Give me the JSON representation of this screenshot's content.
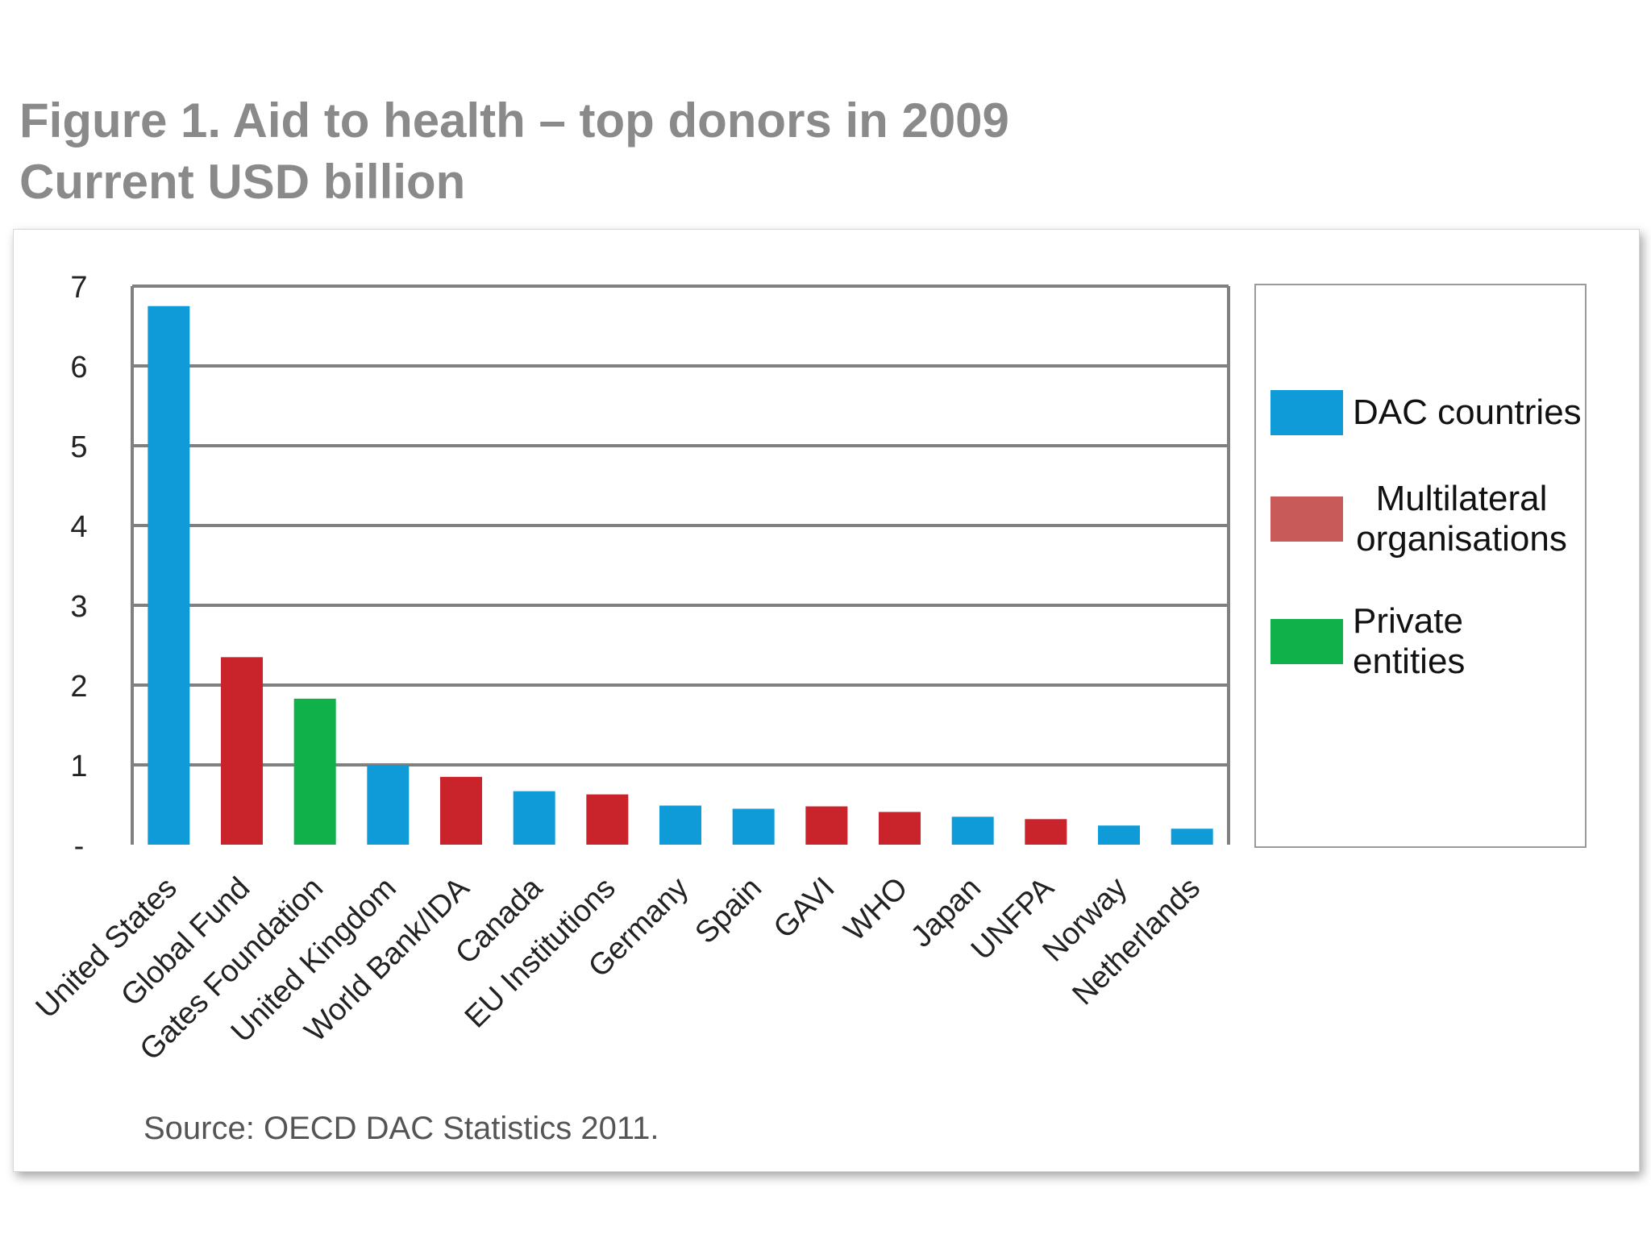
{
  "title": {
    "line1": "Figure 1. Aid to health – top donors in 2009",
    "line2": "Current USD billion"
  },
  "source": "Source:  OECD DAC Statistics 2011.",
  "colors": {
    "dac": "#0f9bd7",
    "multilateral": "#c9242b",
    "private": "#10b04a",
    "legend_multilateral_swatch": "#c95a5a"
  },
  "legend": [
    {
      "label": "DAC countries",
      "group": "dac"
    },
    {
      "label": "Multilateral organisations",
      "group": "multilateral"
    },
    {
      "label": "Private entities",
      "group": "private"
    }
  ],
  "chart_data": {
    "type": "bar",
    "title": "Aid to health – top donors in 2009",
    "ylabel": "Current USD billion",
    "xlabel": "",
    "ylim": [
      0,
      7
    ],
    "yticks": [
      0,
      1,
      2,
      3,
      4,
      5,
      6,
      7
    ],
    "ytick_labels": [
      "-",
      "1",
      "2",
      "3",
      "4",
      "5",
      "6",
      "7"
    ],
    "grid": true,
    "legend_position": "right",
    "categories": [
      "United States",
      "Global Fund",
      "Gates Foundation",
      "United Kingdom",
      "World Bank/IDA",
      "Canada",
      "EU Institutions",
      "Germany",
      "Spain",
      "GAVI",
      "WHO",
      "Japan",
      "UNFPA",
      "Norway",
      "Netherlands"
    ],
    "values": [
      6.75,
      2.35,
      1.83,
      1.0,
      0.85,
      0.67,
      0.63,
      0.49,
      0.45,
      0.48,
      0.41,
      0.35,
      0.32,
      0.24,
      0.2
    ],
    "groups": [
      "dac",
      "multilateral",
      "private",
      "dac",
      "multilateral",
      "dac",
      "multilateral",
      "dac",
      "dac",
      "multilateral",
      "multilateral",
      "dac",
      "multilateral",
      "dac",
      "dac"
    ]
  }
}
